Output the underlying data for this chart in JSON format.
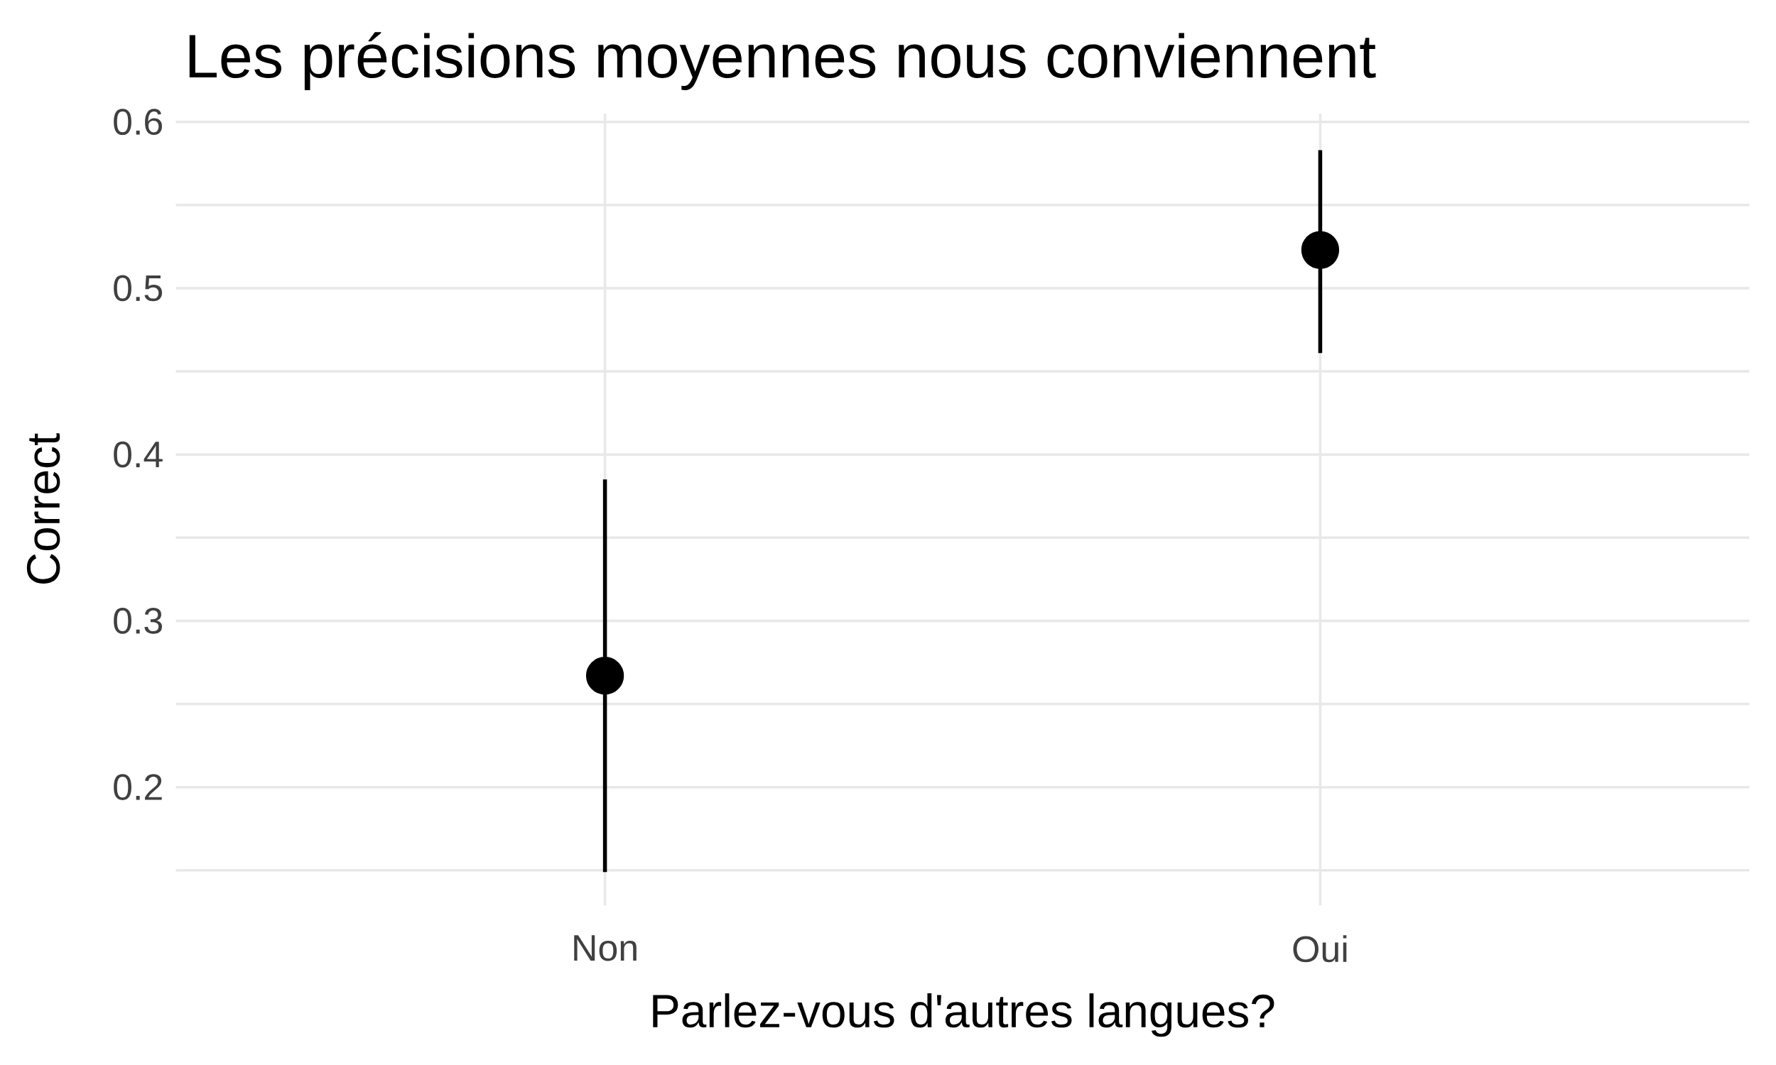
{
  "chart_data": {
    "type": "scatter",
    "title": "Les précisions moyennes nous conviennent",
    "xlabel": "Parlez-vous d'autres langues?",
    "ylabel": "Correct",
    "categories": [
      "Non",
      "Oui"
    ],
    "values": [
      0.267,
      0.523
    ],
    "errors": [
      [
        0.149,
        0.385
      ],
      [
        0.461,
        0.583
      ]
    ],
    "color": "#000000",
    "grid": true,
    "ylim": [
      0.129,
      0.605
    ],
    "yticks": [
      {
        "value": 0.15,
        "label": null
      },
      0.2,
      {
        "value": 0.25,
        "label": null
      },
      0.3,
      {
        "value": 0.35,
        "label": null
      },
      0.4,
      {
        "value": 0.45,
        "label": null
      },
      0.5,
      {
        "value": 0.55,
        "label": null
      },
      0.6
    ]
  }
}
